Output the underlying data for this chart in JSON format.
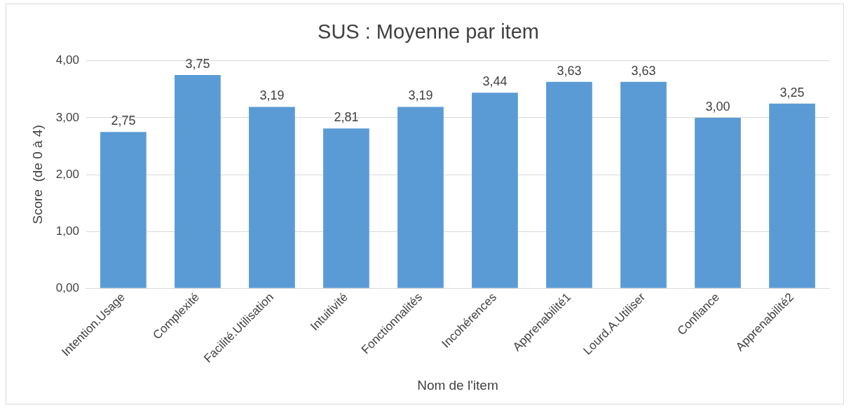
{
  "chart_data": {
    "type": "bar",
    "title": "SUS : Moyenne par item",
    "xlabel": "Nom de l'item",
    "ylabel": "Score  (de 0 à 4)",
    "categories": [
      "Intention.Usage",
      "Complexité",
      "Facilité.Utilisation",
      "Intuitivité",
      "Fonctionnalités",
      "Incohérences",
      "Apprenabilité1",
      "Lourd.A.Utiliser",
      "Confiance",
      "Apprenabilité2"
    ],
    "values": [
      2.75,
      3.75,
      3.19,
      2.81,
      3.19,
      3.44,
      3.63,
      3.63,
      3.0,
      3.25
    ],
    "value_labels": [
      "2,75",
      "3,75",
      "3,19",
      "2,81",
      "3,19",
      "3,44",
      "3,63",
      "3,63",
      "3,00",
      "3,25"
    ],
    "color": "#5b9bd5",
    "ylim": [
      0,
      4
    ],
    "yticks": [
      {
        "value": 0,
        "label": "0,00"
      },
      {
        "value": 1,
        "label": "1,00"
      },
      {
        "value": 2,
        "label": "2,00"
      },
      {
        "value": 3,
        "label": "3,00"
      },
      {
        "value": 4,
        "label": "4,00"
      }
    ],
    "grid": "y",
    "legend": false
  }
}
